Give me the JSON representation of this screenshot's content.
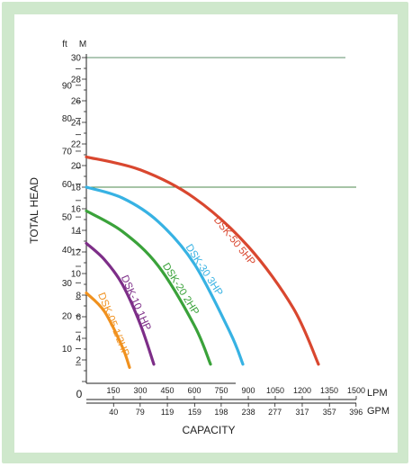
{
  "chart_data": {
    "type": "line",
    "ylabel": "TOTAL HEAD",
    "xlabel": "CAPACITY",
    "y_units": {
      "left": "ft",
      "right": "M"
    },
    "x_units": {
      "top": "LPM",
      "bottom": "GPM"
    },
    "x_origin_label": "0",
    "m_ticks": [
      "30",
      "28",
      "26",
      "24",
      "22",
      "20",
      "18",
      "16",
      "14",
      "12",
      "10",
      "8",
      "6",
      "4",
      "2"
    ],
    "ft_ticks": [
      "90",
      "80",
      "70",
      "60",
      "50",
      "40",
      "30",
      "20",
      "10"
    ],
    "lpm_ticks": [
      "150",
      "300",
      "450",
      "600",
      "750",
      "900",
      "1050",
      "1200",
      "1350",
      "1500"
    ],
    "gpm_ticks": [
      "40",
      "79",
      "119",
      "159",
      "198",
      "238",
      "277",
      "317",
      "357",
      "396"
    ],
    "xlim_lpm": [
      0,
      1500
    ],
    "ylim_m": [
      0,
      30
    ],
    "reference_line_m": 18,
    "series": [
      {
        "name": "DSK-50 5HP",
        "color": "#d9472f",
        "x": [
          0,
          300,
          600,
          900,
          1150,
          1290
        ],
        "y": [
          20.8,
          19.6,
          17.0,
          12.5,
          6.8,
          1.6
        ]
      },
      {
        "name": "DSK-30 3HP",
        "color": "#37b2e3",
        "x": [
          0,
          200,
          400,
          600,
          800,
          870
        ],
        "y": [
          18.0,
          17.0,
          14.8,
          10.9,
          4.5,
          1.6
        ]
      },
      {
        "name": "DSK-20 2HP",
        "color": "#3aa23a",
        "x": [
          0,
          200,
          400,
          600,
          690
        ],
        "y": [
          15.8,
          13.9,
          10.7,
          5.2,
          1.6
        ]
      },
      {
        "name": "DSK-10 1HP",
        "color": "#7d2e88",
        "x": [
          0,
          100,
          200,
          300,
          375
        ],
        "y": [
          12.8,
          11.3,
          9.0,
          5.3,
          1.6
        ]
      },
      {
        "name": "DSK-05 1/2HP",
        "color": "#f0911e",
        "x": [
          0,
          100,
          200,
          240
        ],
        "y": [
          8.2,
          6.5,
          3.2,
          1.3
        ]
      }
    ]
  }
}
